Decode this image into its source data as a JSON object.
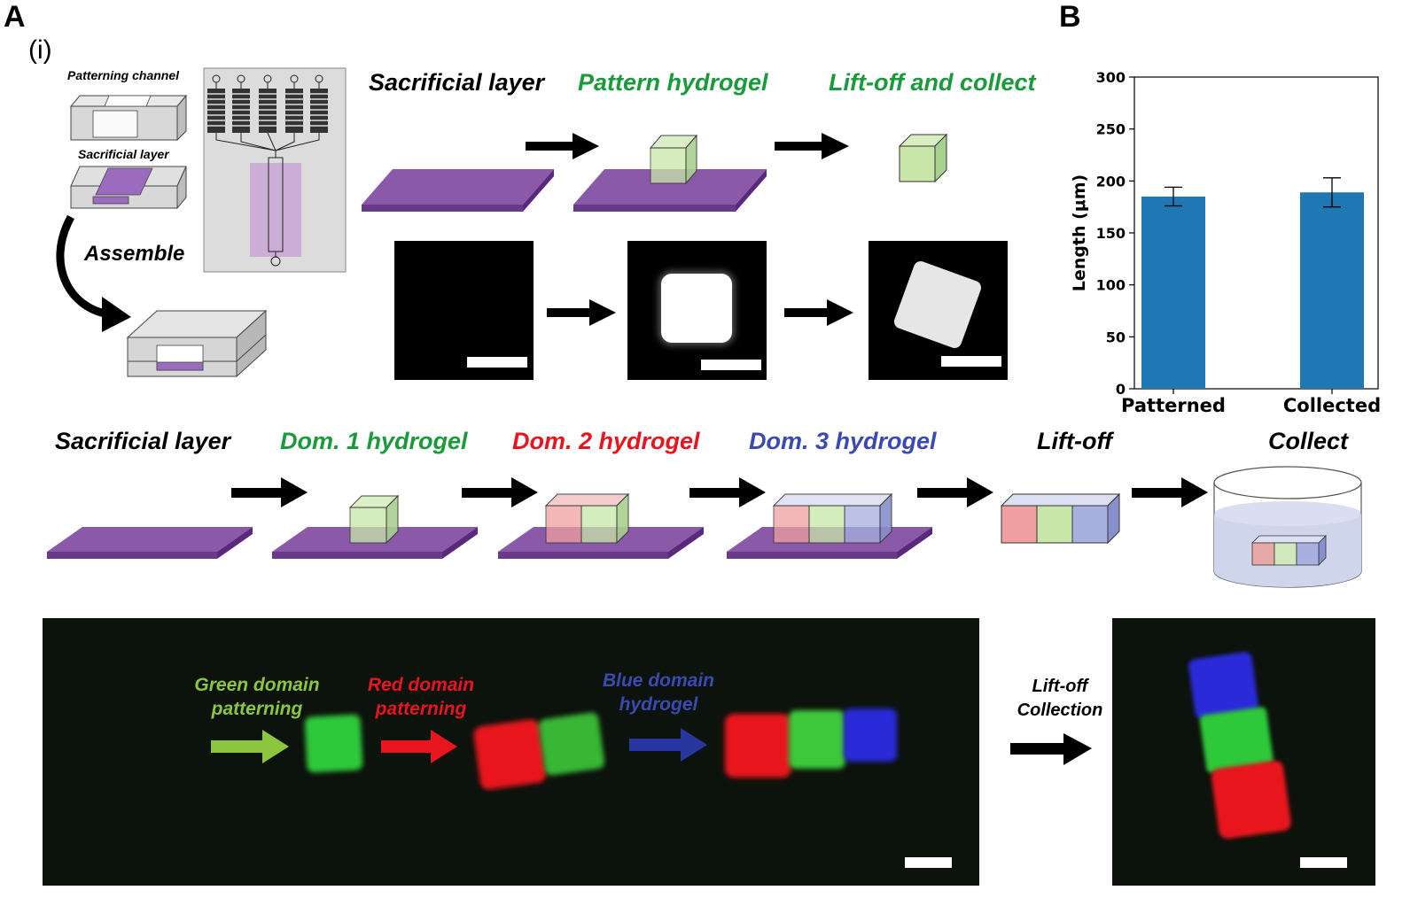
{
  "panels": {
    "a_label": "A",
    "a_sub": "(i)",
    "b_label": "B"
  },
  "colors": {
    "purple": "#8a5aa8",
    "purple_dark": "#6a3a8a",
    "green_cube": "#c8e6a8",
    "red_cube": "#f0a0a0",
    "blue_cube": "#a8b0e0",
    "bar_blue": "#1f77b4",
    "micro_bg": "#0c120c",
    "green_text": "#1a9a3a",
    "red_text": "#e8141e",
    "blue_text": "#3a4ab0",
    "lime_text": "#8cc63f"
  },
  "schematic": {
    "patterning_channel": "Patterning channel",
    "sacrificial_layer": "Sacrificial layer",
    "assemble": "Assemble"
  },
  "top_steps": {
    "sacrificial": "Sacrificial layer",
    "pattern": "Pattern hydrogel",
    "liftoff": "Lift-off and collect"
  },
  "mid_steps": {
    "sacrificial": "Sacrificial layer",
    "dom1": "Dom. 1 hydrogel",
    "dom2": "Dom. 2 hydrogel",
    "dom3": "Dom. 3 hydrogel",
    "liftoff": "Lift-off",
    "collect": "Collect"
  },
  "micrograph": {
    "green_line1": "Green domain",
    "green_line2": "patterning",
    "red_line1": "Red domain",
    "red_line2": "patterning",
    "blue_line1": "Blue domain",
    "blue_line2": "hydrogel",
    "liftoff_line1": "Lift-off",
    "liftoff_line2": "Collection"
  },
  "chart_data": {
    "type": "bar",
    "categories": [
      "Patterned",
      "Collected"
    ],
    "values": [
      185,
      189
    ],
    "errors": [
      9,
      14
    ],
    "ylabel": "Length (μm)",
    "ylim": [
      0,
      300
    ],
    "yticks": [
      0,
      50,
      100,
      150,
      200,
      250,
      300
    ],
    "grid": false
  }
}
